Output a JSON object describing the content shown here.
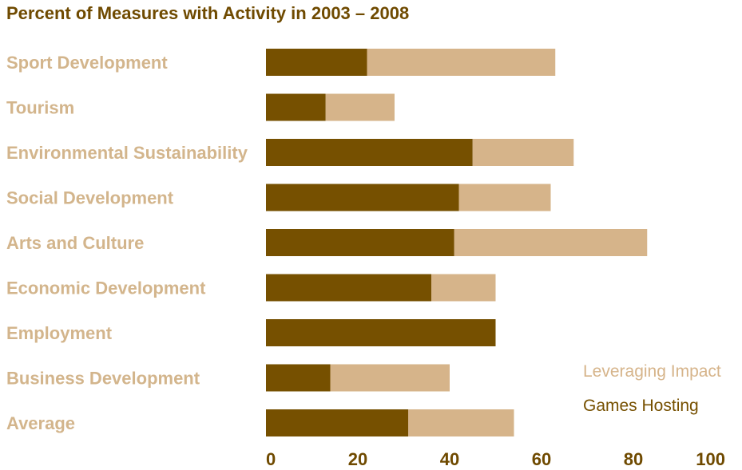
{
  "title": "Percent of Measures with Activity in 2003 – 2008",
  "colors": {
    "games_hosting": "#765000",
    "leveraging_impact": "#d6b48a",
    "category_text": "#d3b58c",
    "axis_text": "#6f4a00"
  },
  "chart_data": {
    "type": "bar",
    "orientation": "horizontal",
    "stacked": true,
    "title": "Percent of Measures with Activity in 2003 – 2008",
    "categories": [
      "Sport Development",
      "Tourism",
      "Environmental Sustainability",
      "Social Development",
      "Arts and Culture",
      "Economic Development",
      "Employment",
      "Business Development",
      "Average"
    ],
    "series": [
      {
        "name": "Games Hosting",
        "values": [
          22,
          13,
          45,
          42,
          41,
          36,
          50,
          14,
          31
        ]
      },
      {
        "name": "Leveraging Impact",
        "values": [
          41,
          15,
          22,
          20,
          42,
          14,
          0,
          26,
          23
        ]
      }
    ],
    "xlim": [
      0,
      100
    ],
    "xticks": [
      "0",
      "20",
      "40",
      "60",
      "80",
      "100"
    ],
    "grid": false,
    "legend_position": "right",
    "legend": [
      "Leveraging Impact",
      "Games Hosting"
    ]
  }
}
